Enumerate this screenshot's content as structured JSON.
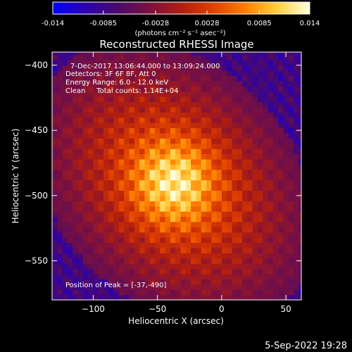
{
  "chart_data": {
    "type": "heatmap",
    "title": "Reconstructed RHESSI Image",
    "xlabel": "Heliocentric X (arcsec)",
    "ylabel": "Heliocentric Y (arcsec)",
    "xlim": [
      -132,
      62
    ],
    "ylim": [
      -580,
      -390
    ],
    "x_ticks": [
      -100,
      -50,
      0,
      50
    ],
    "y_ticks": [
      -400,
      -450,
      -500,
      -550
    ],
    "colorbar": {
      "min": -0.014,
      "max": 0.014,
      "ticks": [
        "-0.014",
        "-0.0085",
        "-0.0028",
        "0.0028",
        "0.0085",
        "0.014"
      ],
      "unit_label": "(photons cm⁻² s⁻¹ asec⁻²)",
      "colormap": [
        "#0000ff",
        "#2a00b0",
        "#4a0a6a",
        "#7a1040",
        "#b01e10",
        "#e04000",
        "#ff8000",
        "#ffd040",
        "#ffffe0"
      ]
    },
    "annotations": [
      "7-Dec-2017 13:06:44.000 to 13:09:24.000",
      "Detectors: 3F 6F 8F, Att 0",
      "Energy Range: 6.0 - 12.0 keV",
      "Clean     Total counts: 1.14E+04"
    ],
    "peak_label": "Position of Peak = [-37,-490]",
    "peak_position": [
      -37,
      -490
    ],
    "grid": false,
    "legend": "none"
  },
  "footer": {
    "date": "5-Sep-2022 19:28"
  }
}
